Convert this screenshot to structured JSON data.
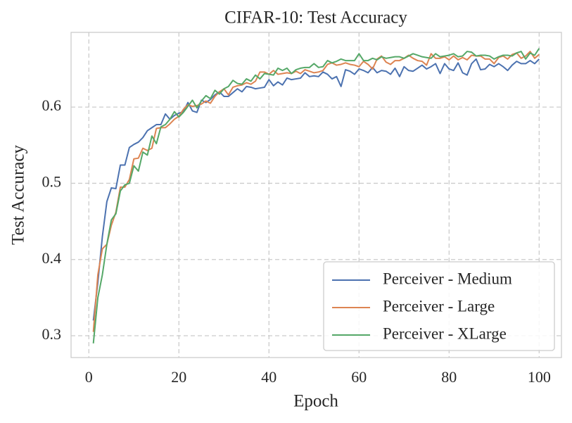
{
  "chart_data": {
    "type": "line",
    "title": "CIFAR-10: Test Accuracy",
    "x_label": "Epoch",
    "y_label": "Test Accuracy",
    "x": [
      1,
      2,
      3,
      4,
      5,
      6,
      7,
      8,
      9,
      10,
      11,
      12,
      13,
      14,
      15,
      16,
      17,
      18,
      19,
      20,
      21,
      22,
      23,
      24,
      25,
      26,
      27,
      28,
      29,
      30,
      31,
      32,
      33,
      34,
      35,
      36,
      37,
      38,
      39,
      40,
      41,
      42,
      43,
      44,
      45,
      46,
      47,
      48,
      49,
      50,
      51,
      52,
      53,
      54,
      55,
      56,
      57,
      58,
      59,
      60,
      61,
      62,
      63,
      64,
      65,
      66,
      67,
      68,
      69,
      70,
      71,
      72,
      73,
      74,
      75,
      76,
      77,
      78,
      79,
      80,
      81,
      82,
      83,
      84,
      85,
      86,
      87,
      88,
      89,
      90,
      91,
      92,
      93,
      94,
      95,
      96,
      97,
      98,
      99,
      100
    ],
    "series": [
      {
        "name": "Perceiver - Medium",
        "color": "#4c72b0",
        "values": [
          0.32,
          0.37,
          0.43,
          0.476,
          0.494,
          0.493,
          0.524,
          0.524,
          0.547,
          0.551,
          0.554,
          0.56,
          0.569,
          0.573,
          0.577,
          0.577,
          0.591,
          0.584,
          0.589,
          0.592,
          0.594,
          0.606,
          0.595,
          0.593,
          0.609,
          0.606,
          0.61,
          0.616,
          0.62,
          0.614,
          0.614,
          0.619,
          0.624,
          0.62,
          0.627,
          0.626,
          0.624,
          0.625,
          0.626,
          0.636,
          0.628,
          0.633,
          0.629,
          0.638,
          0.636,
          0.637,
          0.638,
          0.645,
          0.64,
          0.641,
          0.64,
          0.646,
          0.643,
          0.637,
          0.64,
          0.627,
          0.649,
          0.647,
          0.643,
          0.65,
          0.648,
          0.645,
          0.652,
          0.645,
          0.648,
          0.647,
          0.643,
          0.651,
          0.64,
          0.653,
          0.648,
          0.647,
          0.651,
          0.655,
          0.65,
          0.653,
          0.657,
          0.644,
          0.657,
          0.65,
          0.648,
          0.658,
          0.645,
          0.642,
          0.657,
          0.663,
          0.649,
          0.65,
          0.656,
          0.653,
          0.657,
          0.653,
          0.648,
          0.655,
          0.66,
          0.657,
          0.657,
          0.661,
          0.657,
          0.663
        ]
      },
      {
        "name": "Perceiver - Large",
        "color": "#dd8452",
        "values": [
          0.305,
          0.38,
          0.414,
          0.42,
          0.445,
          0.462,
          0.495,
          0.495,
          0.505,
          0.532,
          0.533,
          0.546,
          0.543,
          0.546,
          0.572,
          0.573,
          0.573,
          0.578,
          0.584,
          0.588,
          0.597,
          0.603,
          0.601,
          0.602,
          0.604,
          0.608,
          0.605,
          0.614,
          0.62,
          0.624,
          0.616,
          0.626,
          0.628,
          0.629,
          0.632,
          0.63,
          0.634,
          0.646,
          0.646,
          0.643,
          0.648,
          0.643,
          0.644,
          0.645,
          0.644,
          0.647,
          0.644,
          0.649,
          0.647,
          0.645,
          0.646,
          0.648,
          0.656,
          0.658,
          0.655,
          0.656,
          0.658,
          0.656,
          0.655,
          0.653,
          0.66,
          0.656,
          0.65,
          0.663,
          0.667,
          0.659,
          0.656,
          0.661,
          0.661,
          0.664,
          0.668,
          0.664,
          0.661,
          0.66,
          0.655,
          0.67,
          0.664,
          0.664,
          0.666,
          0.662,
          0.667,
          0.662,
          0.665,
          0.662,
          0.668,
          0.667,
          0.667,
          0.663,
          0.663,
          0.657,
          0.665,
          0.667,
          0.663,
          0.669,
          0.671,
          0.664,
          0.667,
          0.673,
          0.664,
          0.669
        ]
      },
      {
        "name": "Perceiver - XLarge",
        "color": "#55a868",
        "values": [
          0.29,
          0.35,
          0.38,
          0.42,
          0.452,
          0.46,
          0.49,
          0.498,
          0.5,
          0.523,
          0.516,
          0.541,
          0.537,
          0.562,
          0.552,
          0.574,
          0.577,
          0.584,
          0.594,
          0.587,
          0.593,
          0.601,
          0.609,
          0.599,
          0.608,
          0.615,
          0.611,
          0.622,
          0.617,
          0.624,
          0.627,
          0.635,
          0.631,
          0.63,
          0.637,
          0.634,
          0.642,
          0.637,
          0.644,
          0.643,
          0.642,
          0.651,
          0.648,
          0.651,
          0.644,
          0.649,
          0.651,
          0.652,
          0.652,
          0.657,
          0.652,
          0.653,
          0.661,
          0.658,
          0.66,
          0.663,
          0.661,
          0.661,
          0.661,
          0.67,
          0.661,
          0.661,
          0.664,
          0.662,
          0.666,
          0.664,
          0.665,
          0.666,
          0.666,
          0.664,
          0.667,
          0.67,
          0.668,
          0.666,
          0.665,
          0.664,
          0.67,
          0.666,
          0.667,
          0.668,
          0.67,
          0.666,
          0.667,
          0.673,
          0.672,
          0.667,
          0.668,
          0.668,
          0.667,
          0.663,
          0.666,
          0.668,
          0.668,
          0.667,
          0.671,
          0.673,
          0.663,
          0.671,
          0.668,
          0.677
        ]
      }
    ],
    "xlim": [
      -3.95,
      104.95
    ],
    "ylim": [
      0.2714,
      0.698
    ],
    "xticks": [
      0,
      20,
      40,
      60,
      80,
      100
    ],
    "yticks": [
      0.3,
      0.4,
      0.5,
      0.6
    ],
    "grid": true,
    "legend": "lower right"
  }
}
